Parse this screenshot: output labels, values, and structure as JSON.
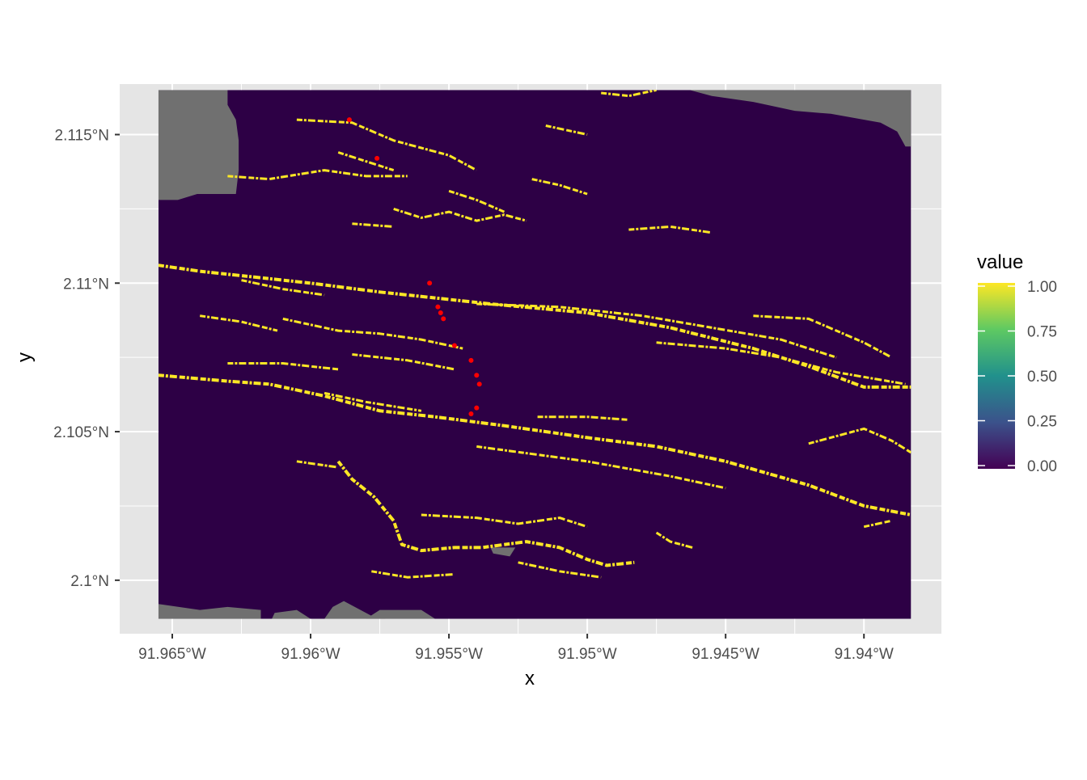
{
  "chart_data": {
    "type": "heatmap",
    "title": "",
    "xlabel": "x",
    "ylabel": "y",
    "xlim": [
      -91.9669,
      -91.9372
    ],
    "ylim": [
      2.0982,
      2.1167
    ],
    "x_ticks": [
      {
        "value": -91.965,
        "label": "91.965°W"
      },
      {
        "value": -91.96,
        "label": "91.96°W"
      },
      {
        "value": -91.955,
        "label": "91.955°W"
      },
      {
        "value": -91.95,
        "label": "91.95°W"
      },
      {
        "value": -91.945,
        "label": "91.945°W"
      },
      {
        "value": -91.94,
        "label": "91.94°W"
      }
    ],
    "y_ticks": [
      {
        "value": 2.1,
        "label": "2.1°N"
      },
      {
        "value": 2.105,
        "label": "2.105°N"
      },
      {
        "value": 2.11,
        "label": "2.11°N"
      },
      {
        "value": 2.115,
        "label": "2.115°N"
      }
    ],
    "raster_extent": {
      "xmin": -91.9655,
      "xmax": -91.9383,
      "ymin": 2.0987,
      "ymax": 2.1165
    },
    "grid": true,
    "colors": {
      "panel": "#e5e5e5",
      "gridline": "#ffffff",
      "value_0": "#440154",
      "value_1": "#fde725",
      "na": "#707070",
      "points": "#ff0000",
      "background": "#2d0045"
    },
    "legend": {
      "title": "value",
      "position": "right",
      "colormap": [
        "#440154",
        "#3b528b",
        "#21918c",
        "#5ec962",
        "#fde725"
      ],
      "range": [
        0,
        1
      ],
      "breaks": [
        {
          "value": 0.0,
          "label": "0.00"
        },
        {
          "value": 0.25,
          "label": "0.25"
        },
        {
          "value": 0.5,
          "label": "0.50"
        },
        {
          "value": 0.75,
          "label": "0.75"
        },
        {
          "value": 1.0,
          "label": "1.00"
        }
      ]
    },
    "points": [
      {
        "x": -91.9586,
        "y": 2.1155
      },
      {
        "x": -91.9576,
        "y": 2.1142
      },
      {
        "x": -91.9557,
        "y": 2.11
      },
      {
        "x": -91.9554,
        "y": 2.1092
      },
      {
        "x": -91.9553,
        "y": 2.109
      },
      {
        "x": -91.9552,
        "y": 2.1088
      },
      {
        "x": -91.9548,
        "y": 2.1079
      },
      {
        "x": -91.9542,
        "y": 2.1074
      },
      {
        "x": -91.954,
        "y": 2.1069
      },
      {
        "x": -91.9539,
        "y": 2.1066
      },
      {
        "x": -91.9542,
        "y": 2.1056
      },
      {
        "x": -91.954,
        "y": 2.1058
      }
    ],
    "na_regions": [
      [
        [
          -91.9655,
          2.1165
        ],
        [
          -91.963,
          2.1165
        ],
        [
          -91.963,
          2.116
        ],
        [
          -91.9627,
          2.1155
        ],
        [
          -91.9626,
          2.1148
        ],
        [
          -91.9626,
          2.1138
        ],
        [
          -91.9627,
          2.113
        ],
        [
          -91.9641,
          2.113
        ],
        [
          -91.9648,
          2.1128
        ],
        [
          -91.9655,
          2.1128
        ]
      ],
      [
        [
          -91.9463,
          2.1165
        ],
        [
          -91.9383,
          2.1165
        ],
        [
          -91.9383,
          2.1146
        ],
        [
          -91.9385,
          2.1146
        ],
        [
          -91.9388,
          2.1151
        ],
        [
          -91.9394,
          2.1154
        ],
        [
          -91.9412,
          2.1157
        ],
        [
          -91.9425,
          2.1158
        ],
        [
          -91.944,
          2.1161
        ],
        [
          -91.9455,
          2.1163
        ]
      ],
      [
        [
          -91.9655,
          2.0987
        ],
        [
          -91.9655,
          2.0992
        ],
        [
          -91.964,
          2.099
        ],
        [
          -91.963,
          2.0991
        ],
        [
          -91.9618,
          2.099
        ],
        [
          -91.9618,
          2.0987
        ]
      ],
      [
        [
          -91.96,
          2.0987
        ],
        [
          -91.9614,
          2.0987
        ],
        [
          -91.9613,
          2.0989
        ],
        [
          -91.9605,
          2.099
        ]
      ],
      [
        [
          -91.9595,
          2.0987
        ],
        [
          -91.9573,
          2.0987
        ],
        [
          -91.9578,
          2.0988
        ],
        [
          -91.9588,
          2.0993
        ],
        [
          -91.9592,
          2.0991
        ]
      ],
      [
        [
          -91.958,
          2.0987
        ],
        [
          -91.9555,
          2.0987
        ],
        [
          -91.956,
          2.099
        ],
        [
          -91.9575,
          2.099
        ]
      ],
      [
        [
          -91.9535,
          2.1011
        ],
        [
          -91.9526,
          2.1011
        ],
        [
          -91.9528,
          2.1008
        ],
        [
          -91.9534,
          2.1009
        ]
      ]
    ],
    "features": [
      {
        "w": 4,
        "pts": [
          [
            -91.9655,
            2.1106
          ],
          [
            -91.964,
            2.1104
          ],
          [
            -91.962,
            2.1102
          ],
          [
            -91.96,
            2.11
          ],
          [
            -91.9575,
            2.1097
          ],
          [
            -91.9555,
            2.1095
          ],
          [
            -91.9535,
            2.1093
          ],
          [
            -91.95,
            2.109
          ],
          [
            -91.947,
            2.1085
          ],
          [
            -91.944,
            2.1078
          ],
          [
            -91.942,
            2.1072
          ],
          [
            -91.94,
            2.1065
          ],
          [
            -91.9383,
            2.1065
          ]
        ]
      },
      {
        "w": 4,
        "pts": [
          [
            -91.9655,
            2.1069
          ],
          [
            -91.963,
            2.1067
          ],
          [
            -91.9615,
            2.1066
          ],
          [
            -91.9595,
            2.1062
          ],
          [
            -91.9575,
            2.1057
          ],
          [
            -91.9555,
            2.1055
          ],
          [
            -91.953,
            2.1052
          ],
          [
            -91.95,
            2.1048
          ],
          [
            -91.9475,
            2.1045
          ],
          [
            -91.945,
            2.104
          ],
          [
            -91.942,
            2.1032
          ],
          [
            -91.94,
            2.1025
          ],
          [
            -91.9383,
            2.1022
          ]
        ]
      },
      {
        "w": 3,
        "pts": [
          [
            -91.963,
            2.1136
          ],
          [
            -91.9615,
            2.1135
          ],
          [
            -91.9595,
            2.1138
          ],
          [
            -91.958,
            2.1136
          ],
          [
            -91.9565,
            2.1136
          ]
        ]
      },
      {
        "w": 3,
        "pts": [
          [
            -91.9605,
            2.1155
          ],
          [
            -91.9585,
            2.1154
          ],
          [
            -91.957,
            2.1148
          ],
          [
            -91.955,
            2.1143
          ],
          [
            -91.954,
            2.1138
          ]
        ]
      },
      {
        "w": 3,
        "pts": [
          [
            -91.961,
            2.1088
          ],
          [
            -91.959,
            2.1084
          ],
          [
            -91.9575,
            2.1083
          ],
          [
            -91.956,
            2.1081
          ],
          [
            -91.9545,
            2.1078
          ]
        ]
      },
      {
        "w": 3,
        "pts": [
          [
            -91.964,
            2.1089
          ],
          [
            -91.9625,
            2.1087
          ],
          [
            -91.9612,
            2.1084
          ]
        ]
      },
      {
        "w": 3,
        "pts": [
          [
            -91.963,
            2.1073
          ],
          [
            -91.961,
            2.1073
          ],
          [
            -91.959,
            2.1071
          ]
        ]
      },
      {
        "w": 3,
        "pts": [
          [
            -91.9585,
            2.1076
          ],
          [
            -91.9565,
            2.1074
          ],
          [
            -91.9548,
            2.1071
          ]
        ]
      },
      {
        "w": 3,
        "pts": [
          [
            -91.954,
            2.1093
          ],
          [
            -91.951,
            2.1092
          ],
          [
            -91.948,
            2.1089
          ],
          [
            -91.9455,
            2.1085
          ],
          [
            -91.943,
            2.1081
          ],
          [
            -91.941,
            2.1075
          ]
        ]
      },
      {
        "w": 3,
        "pts": [
          [
            -91.9475,
            2.108
          ],
          [
            -91.945,
            2.1078
          ],
          [
            -91.943,
            2.1075
          ],
          [
            -91.941,
            2.107
          ],
          [
            -91.9385,
            2.1066
          ]
        ]
      },
      {
        "w": 3,
        "pts": [
          [
            -91.944,
            2.1089
          ],
          [
            -91.942,
            2.1088
          ],
          [
            -91.94,
            2.108
          ],
          [
            -91.939,
            2.1075
          ]
        ]
      },
      {
        "w": 3,
        "pts": [
          [
            -91.9595,
            2.1063
          ],
          [
            -91.958,
            2.106
          ],
          [
            -91.956,
            2.1057
          ]
        ]
      },
      {
        "w": 3,
        "pts": [
          [
            -91.954,
            2.1045
          ],
          [
            -91.95,
            2.104
          ],
          [
            -91.947,
            2.1035
          ],
          [
            -91.945,
            2.1031
          ]
        ]
      },
      {
        "w": 3,
        "pts": [
          [
            -91.942,
            2.1046
          ],
          [
            -91.94,
            2.1051
          ],
          [
            -91.939,
            2.1047
          ],
          [
            -91.9383,
            2.1043
          ]
        ]
      },
      {
        "w": 3,
        "pts": [
          [
            -91.9518,
            2.1055
          ],
          [
            -91.95,
            2.1055
          ],
          [
            -91.9485,
            2.1054
          ]
        ]
      },
      {
        "w": 4,
        "pts": [
          [
            -91.959,
            2.104
          ],
          [
            -91.9585,
            2.1034
          ],
          [
            -91.9577,
            2.1028
          ],
          [
            -91.957,
            2.102
          ],
          [
            -91.9567,
            2.1012
          ],
          [
            -91.956,
            2.101
          ],
          [
            -91.9548,
            2.1011
          ],
          [
            -91.9538,
            2.1011
          ],
          [
            -91.9522,
            2.1013
          ],
          [
            -91.951,
            2.1011
          ],
          [
            -91.95,
            2.1007
          ],
          [
            -91.9493,
            2.1005
          ],
          [
            -91.9483,
            2.1006
          ]
        ]
      },
      {
        "w": 3,
        "pts": [
          [
            -91.956,
            2.1022
          ],
          [
            -91.954,
            2.1021
          ],
          [
            -91.9525,
            2.1019
          ],
          [
            -91.951,
            2.1021
          ],
          [
            -91.95,
            2.1018
          ]
        ]
      },
      {
        "w": 3,
        "pts": [
          [
            -91.9578,
            2.1003
          ],
          [
            -91.9565,
            2.1001
          ],
          [
            -91.9548,
            2.1002
          ]
        ]
      },
      {
        "w": 3,
        "pts": [
          [
            -91.9525,
            2.1006
          ],
          [
            -91.951,
            2.1003
          ],
          [
            -91.9495,
            2.1001
          ]
        ]
      },
      {
        "w": 3,
        "pts": [
          [
            -91.957,
            2.1125
          ],
          [
            -91.956,
            2.1122
          ],
          [
            -91.955,
            2.1124
          ],
          [
            -91.954,
            2.1121
          ],
          [
            -91.953,
            2.1123
          ],
          [
            -91.9522,
            2.1121
          ]
        ]
      },
      {
        "w": 3,
        "pts": [
          [
            -91.955,
            2.1131
          ],
          [
            -91.954,
            2.1128
          ],
          [
            -91.953,
            2.1124
          ]
        ]
      },
      {
        "w": 3,
        "pts": [
          [
            -91.952,
            2.1135
          ],
          [
            -91.951,
            2.1133
          ],
          [
            -91.95,
            2.113
          ]
        ]
      },
      {
        "w": 3,
        "pts": [
          [
            -91.9485,
            2.1118
          ],
          [
            -91.947,
            2.1119
          ],
          [
            -91.9455,
            2.1117
          ]
        ]
      },
      {
        "w": 3,
        "pts": [
          [
            -91.9585,
            2.112
          ],
          [
            -91.957,
            2.1119
          ]
        ]
      },
      {
        "w": 3,
        "pts": [
          [
            -91.9515,
            2.1153
          ],
          [
            -91.95,
            2.115
          ]
        ]
      },
      {
        "w": 3,
        "pts": [
          [
            -91.9495,
            2.1164
          ],
          [
            -91.9485,
            2.1163
          ],
          [
            -91.9475,
            2.1165
          ]
        ]
      },
      {
        "w": 3,
        "pts": [
          [
            -91.9625,
            2.1101
          ],
          [
            -91.961,
            2.1098
          ],
          [
            -91.9595,
            2.1096
          ]
        ]
      },
      {
        "w": 3,
        "pts": [
          [
            -91.9605,
            2.104
          ],
          [
            -91.959,
            2.1038
          ]
        ]
      },
      {
        "w": 3,
        "pts": [
          [
            -91.94,
            2.1018
          ],
          [
            -91.939,
            2.102
          ]
        ]
      },
      {
        "w": 3,
        "pts": [
          [
            -91.9475,
            2.1016
          ],
          [
            -91.947,
            2.1013
          ],
          [
            -91.9462,
            2.1011
          ]
        ]
      },
      {
        "w": 3,
        "pts": [
          [
            -91.959,
            2.1144
          ],
          [
            -91.958,
            2.1141
          ],
          [
            -91.957,
            2.1138
          ]
        ]
      }
    ]
  }
}
